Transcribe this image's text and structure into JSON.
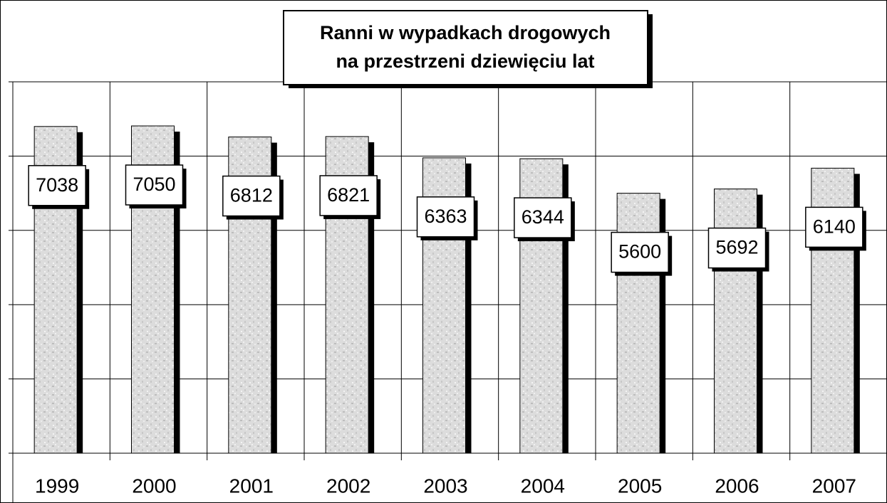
{
  "chart_data": {
    "type": "bar",
    "title": "Ranni w wypadkach drogowych",
    "subtitle": "na przestrzeni dziewięciu lat",
    "categories": [
      "1999",
      "2000",
      "2001",
      "2002",
      "2003",
      "2004",
      "2005",
      "2006",
      "2007"
    ],
    "values": [
      7038,
      7050,
      6812,
      6821,
      6363,
      6344,
      5600,
      5692,
      6140
    ],
    "color": "#d9d9d9",
    "ylim": [
      0,
      8000
    ],
    "yticks": [
      0,
      1600,
      3200,
      4800,
      6400,
      8000
    ],
    "grid": true
  }
}
